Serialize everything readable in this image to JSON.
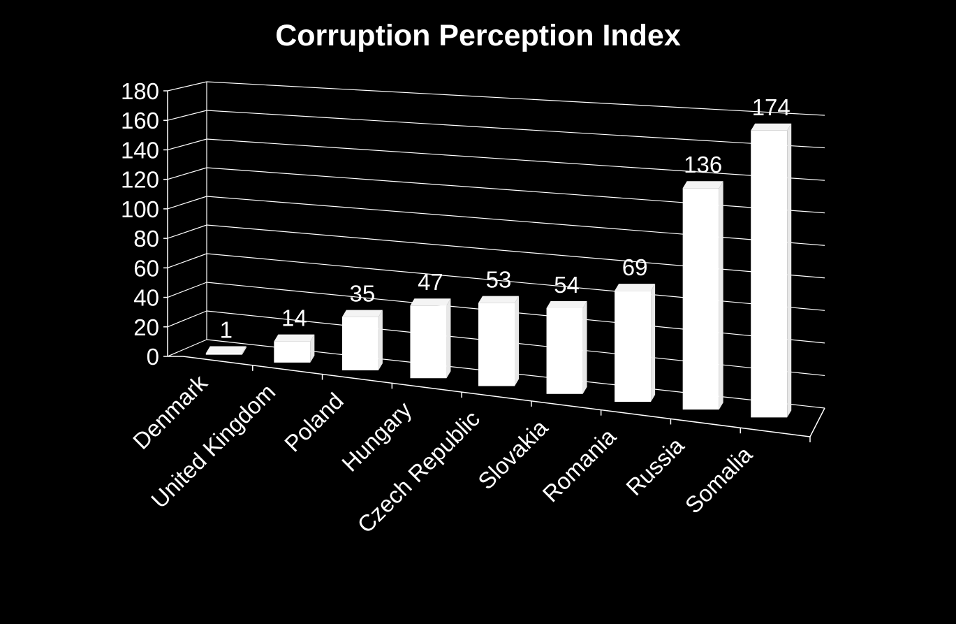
{
  "chart_data": {
    "type": "bar",
    "title": "Corruption Perception Index",
    "categories": [
      "Denmark",
      "United Kingdom",
      "Poland",
      "Hungary",
      "Czech Republic",
      "Slovakia",
      "Romania",
      "Russia",
      "Somalia"
    ],
    "values": [
      1,
      14,
      35,
      47,
      53,
      54,
      69,
      136,
      174
    ],
    "ylim": [
      0,
      180
    ],
    "yticks": [
      0,
      20,
      40,
      60,
      80,
      100,
      120,
      140,
      160,
      180
    ],
    "xlabel": "",
    "ylabel": "",
    "grid": true,
    "legend": "none",
    "style": "3d-perspective"
  },
  "colors": {
    "background": "#000000",
    "bar": "#ffffff",
    "text": "#ffffff",
    "axis": "#ffffff"
  }
}
